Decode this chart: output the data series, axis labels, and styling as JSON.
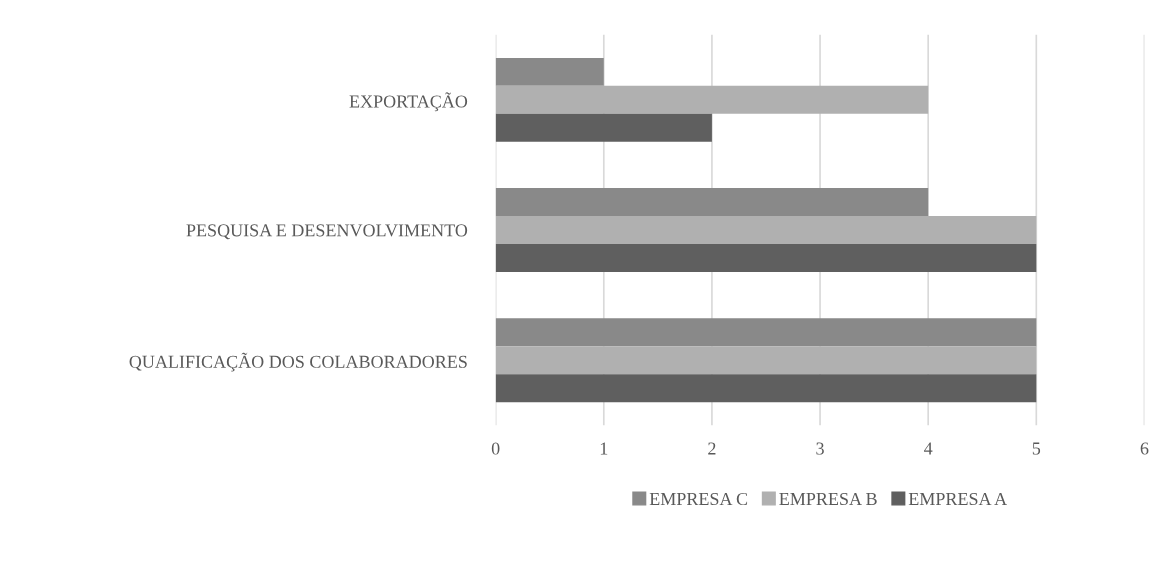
{
  "chart_data": {
    "type": "bar",
    "orientation": "horizontal",
    "categories": [
      "EXPORTAÇÃO",
      "PESQUISA E DESENVOLVIMENTO",
      "QUALIFICAÇÃO DOS COLABORADORES"
    ],
    "series": [
      {
        "name": "EMPRESA C",
        "color": "#898989",
        "values": [
          1,
          4,
          5
        ]
      },
      {
        "name": "EMPRESA B",
        "color": "#b0b0b0",
        "values": [
          4,
          5,
          5
        ]
      },
      {
        "name": "EMPRESA A",
        "color": "#5f5f5f",
        "values": [
          2,
          5,
          5
        ]
      }
    ],
    "xlim": [
      0,
      6
    ],
    "xticks": [
      0,
      1,
      2,
      3,
      4,
      5,
      6
    ],
    "grid": "x",
    "legend": "bottom"
  }
}
